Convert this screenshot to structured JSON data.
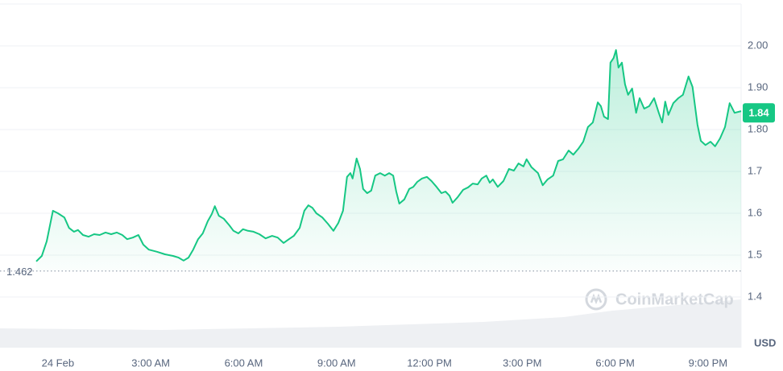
{
  "chart_data": {
    "type": "line",
    "color": "#16c784",
    "x": [
      -0.7,
      -0.52,
      -0.36,
      -0.16,
      0,
      0.21,
      0.36,
      0.52,
      0.65,
      0.81,
      0.99,
      1.17,
      1.35,
      1.54,
      1.72,
      1.9,
      2.08,
      2.24,
      2.42,
      2.6,
      2.76,
      2.94,
      3.2,
      3.46,
      3.72,
      3.9,
      4.06,
      4.22,
      4.37,
      4.53,
      4.68,
      4.84,
      4.97,
      5.07,
      5.2,
      5.36,
      5.54,
      5.67,
      5.83,
      5.98,
      6.14,
      6.32,
      6.51,
      6.71,
      6.92,
      7.1,
      7.29,
      7.44,
      7.62,
      7.81,
      7.96,
      8.09,
      8.22,
      8.35,
      8.54,
      8.72,
      8.9,
      9.06,
      9.21,
      9.34,
      9.45,
      9.52,
      9.65,
      9.76,
      9.86,
      9.99,
      10.12,
      10.25,
      10.41,
      10.56,
      10.7,
      10.83,
      10.93,
      11.03,
      11.19,
      11.35,
      11.48,
      11.61,
      11.76,
      11.92,
      12.07,
      12.23,
      12.39,
      12.52,
      12.65,
      12.75,
      12.91,
      13.09,
      13.25,
      13.4,
      13.56,
      13.69,
      13.84,
      13.95,
      14.05,
      14.21,
      14.39,
      14.57,
      14.73,
      14.88,
      15.04,
      15.14,
      15.3,
      15.51,
      15.66,
      15.82,
      16.0,
      16.16,
      16.32,
      16.5,
      16.65,
      16.81,
      16.97,
      17.12,
      17.28,
      17.44,
      17.54,
      17.64,
      17.77,
      17.85,
      17.95,
      18.03,
      18.11,
      18.22,
      18.32,
      18.42,
      18.55,
      18.68,
      18.79,
      18.94,
      19.1,
      19.26,
      19.41,
      19.52,
      19.62,
      19.72,
      19.88,
      20.04,
      20.19,
      20.37,
      20.5,
      20.66,
      20.77,
      20.92,
      21.08,
      21.23,
      21.39,
      21.55,
      21.7,
      21.86,
      22.07
    ],
    "values": [
      1.485,
      1.498,
      1.533,
      1.606,
      1.6,
      1.59,
      1.565,
      1.556,
      1.56,
      1.548,
      1.544,
      1.55,
      1.548,
      1.554,
      1.55,
      1.554,
      1.548,
      1.538,
      1.542,
      1.548,
      1.525,
      1.513,
      1.508,
      1.502,
      1.498,
      1.494,
      1.487,
      1.494,
      1.513,
      1.538,
      1.552,
      1.581,
      1.598,
      1.617,
      1.594,
      1.587,
      1.571,
      1.558,
      1.552,
      1.562,
      1.558,
      1.556,
      1.55,
      1.54,
      1.546,
      1.542,
      1.529,
      1.537,
      1.546,
      1.565,
      1.606,
      1.619,
      1.613,
      1.6,
      1.59,
      1.575,
      1.558,
      1.577,
      1.606,
      1.687,
      1.696,
      1.683,
      1.731,
      1.706,
      1.658,
      1.648,
      1.654,
      1.69,
      1.696,
      1.69,
      1.696,
      1.69,
      1.652,
      1.623,
      1.633,
      1.658,
      1.663,
      1.675,
      1.683,
      1.687,
      1.677,
      1.663,
      1.648,
      1.652,
      1.642,
      1.625,
      1.638,
      1.656,
      1.662,
      1.671,
      1.669,
      1.683,
      1.69,
      1.673,
      1.681,
      1.663,
      1.677,
      1.706,
      1.702,
      1.719,
      1.712,
      1.729,
      1.71,
      1.696,
      1.667,
      1.681,
      1.69,
      1.725,
      1.729,
      1.75,
      1.74,
      1.754,
      1.771,
      1.806,
      1.817,
      1.865,
      1.856,
      1.831,
      1.825,
      1.96,
      1.971,
      1.99,
      1.948,
      1.96,
      1.908,
      1.883,
      1.898,
      1.84,
      1.875,
      1.85,
      1.856,
      1.875,
      1.84,
      1.817,
      1.867,
      1.835,
      1.863,
      1.875,
      1.883,
      1.927,
      1.902,
      1.812,
      1.773,
      1.763,
      1.771,
      1.76,
      1.779,
      1.806,
      1.863,
      1.84,
      1.844
    ],
    "xlim": [
      -1.87,
      22.07
    ],
    "xticks": [
      {
        "value": 0,
        "label": "24 Feb"
      },
      {
        "value": 3,
        "label": "3:00 AM"
      },
      {
        "value": 6,
        "label": "6:00 AM"
      },
      {
        "value": 9,
        "label": "9:00 AM"
      },
      {
        "value": 12,
        "label": "12:00 PM"
      },
      {
        "value": 15,
        "label": "3:00 PM"
      },
      {
        "value": 18,
        "label": "6:00 PM"
      },
      {
        "value": 21,
        "label": "9:00 PM"
      }
    ],
    "ylim": [
      1.28,
      2.1
    ],
    "yticks": [
      {
        "value": 2,
        "label": "2.00"
      },
      {
        "value": 1.9,
        "label": "1.90"
      },
      {
        "value": 1.8,
        "label": "1.80"
      },
      1.7,
      1.6,
      1.5,
      1.4
    ],
    "grid": true,
    "reference_value": 1.462,
    "current_price": 1.84,
    "unit": "USD",
    "watermark": "CoinMarketCap"
  }
}
